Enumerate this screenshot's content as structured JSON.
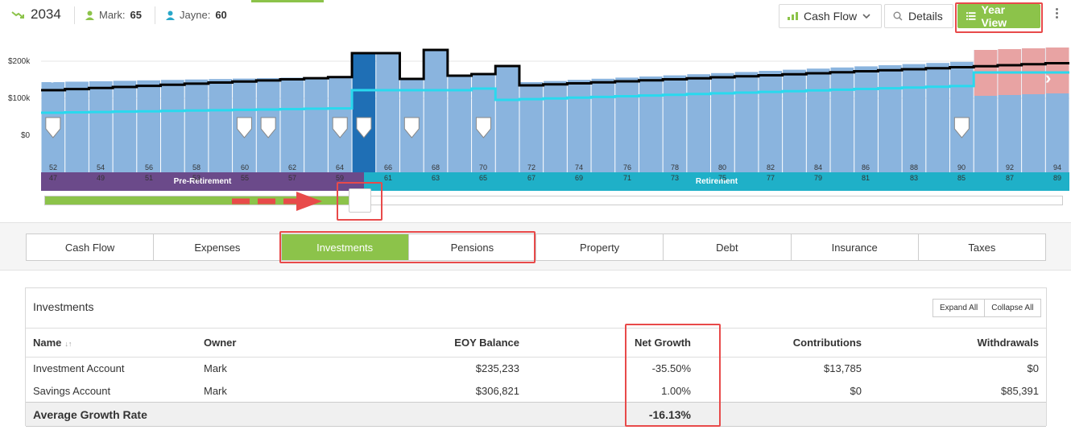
{
  "header": {
    "year": "2034",
    "persons": [
      {
        "name_label": "Mark:",
        "age": "65"
      },
      {
        "name_label": "Jayne:",
        "age": "60"
      }
    ],
    "cash_flow_label": "Cash Flow",
    "details_label": "Details",
    "year_view_label": "Year View"
  },
  "chart": {
    "y_ticks": [
      "$200k",
      "$100k",
      "$0"
    ],
    "phases": [
      "Pre-Retirement",
      "Retirement"
    ],
    "ages_mark": [
      "52",
      "54",
      "56",
      "58",
      "60",
      "62",
      "64",
      "66",
      "68",
      "70",
      "72",
      "74",
      "76",
      "78",
      "80",
      "82",
      "84",
      "86",
      "88",
      "90",
      "92",
      "94"
    ],
    "ages_jayne": [
      "47",
      "49",
      "51",
      "53",
      "55",
      "57",
      "59",
      "61",
      "63",
      "65",
      "67",
      "69",
      "71",
      "73",
      "75",
      "77",
      "79",
      "81",
      "83",
      "85",
      "87",
      "89"
    ],
    "colors": {
      "bar": "#8ab4de",
      "selected_bar": "#1f6fb5",
      "shortfall_bar": "#e8a3a3",
      "cash_line": "#000000",
      "income_line": "#29d9ee",
      "pre_retirement": "#6b4a8a",
      "retirement": "#1fb0c8"
    }
  },
  "tabs": [
    "Cash Flow",
    "Expenses",
    "Investments",
    "Pensions",
    "Property",
    "Debt",
    "Insurance",
    "Taxes"
  ],
  "investments": {
    "title": "Investments",
    "expand_all": "Expand All",
    "collapse_all": "Collapse All",
    "columns": [
      "Name",
      "Owner",
      "EOY Balance",
      "Net Growth",
      "Contributions",
      "Withdrawals"
    ],
    "rows": [
      {
        "name": "Investment Account",
        "owner": "Mark",
        "eoy_balance": "$235,233",
        "net_growth": "-35.50%",
        "contributions": "$13,785",
        "withdrawals": "$0"
      },
      {
        "name": "Savings Account",
        "owner": "Mark",
        "eoy_balance": "$306,821",
        "net_growth": "1.00%",
        "contributions": "$0",
        "withdrawals": "$85,391"
      }
    ],
    "average_label": "Average Growth Rate",
    "average_value": "-16.13%"
  }
}
